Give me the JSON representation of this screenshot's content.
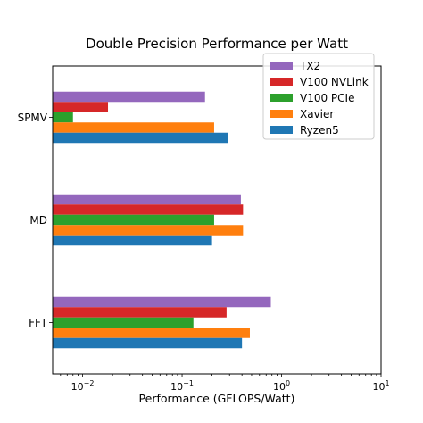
{
  "chart_data": {
    "type": "bar",
    "orientation": "horizontal",
    "title": "Double Precision Performance per Watt",
    "xlabel": "Performance (GFLOPS/Watt)",
    "ylabel": "",
    "xscale": "log",
    "xlim": [
      0.005,
      10
    ],
    "xticks": [
      {
        "value": 0.01,
        "base": "10",
        "exp": "−2"
      },
      {
        "value": 0.1,
        "base": "10",
        "exp": "−1"
      },
      {
        "value": 1,
        "base": "10",
        "exp": "0"
      },
      {
        "value": 10,
        "base": "10",
        "exp": "1"
      }
    ],
    "grid": false,
    "legend_position": "top-right",
    "categories": [
      "SPMV",
      "MD",
      "FFT"
    ],
    "series": [
      {
        "name": "TX2",
        "color": "#9467bd",
        "values": [
          0.17,
          0.39,
          0.78
        ]
      },
      {
        "name": "V100 NVLink",
        "color": "#d62728",
        "values": [
          0.018,
          0.41,
          0.28
        ]
      },
      {
        "name": "V100 PCIe",
        "color": "#2ca02c",
        "values": [
          0.008,
          0.21,
          0.13
        ]
      },
      {
        "name": "Xavier",
        "color": "#ff7f0e",
        "values": [
          0.21,
          0.41,
          0.48
        ]
      },
      {
        "name": "Ryzen5",
        "color": "#1f77b4",
        "values": [
          0.29,
          0.2,
          0.4
        ]
      }
    ]
  }
}
